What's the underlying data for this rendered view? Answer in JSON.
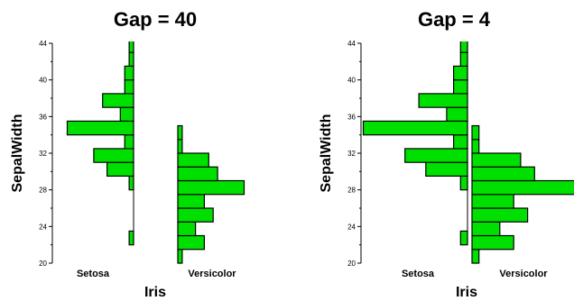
{
  "chart_data": [
    {
      "type": "bar",
      "title": "Gap = 40",
      "xlabel": "Iris",
      "ylabel": "SepalWidth",
      "ylim": [
        20,
        44
      ],
      "yticks": [
        20,
        24,
        28,
        32,
        36,
        40,
        44
      ],
      "categories": [
        "Setosa",
        "Versicolor"
      ],
      "bin_width": 1.5,
      "series": [
        {
          "category": "Setosa",
          "bins": [
            {
              "lo": 22.0,
              "hi": 23.5,
              "count": 1
            },
            {
              "lo": 28.0,
              "hi": 29.5,
              "count": 1
            },
            {
              "lo": 29.5,
              "hi": 31.0,
              "count": 6
            },
            {
              "lo": 31.0,
              "hi": 32.5,
              "count": 9
            },
            {
              "lo": 32.5,
              "hi": 34.0,
              "count": 2
            },
            {
              "lo": 34.0,
              "hi": 35.5,
              "count": 15
            },
            {
              "lo": 35.5,
              "hi": 37.0,
              "count": 3
            },
            {
              "lo": 37.0,
              "hi": 38.5,
              "count": 7
            },
            {
              "lo": 38.5,
              "hi": 40.0,
              "count": 2
            },
            {
              "lo": 40.0,
              "hi": 41.5,
              "count": 2
            },
            {
              "lo": 41.5,
              "hi": 43.0,
              "count": 1
            },
            {
              "lo": 43.0,
              "hi": 44.5,
              "count": 1
            }
          ]
        },
        {
          "category": "Versicolor",
          "bins": [
            {
              "lo": 20.0,
              "hi": 21.5,
              "count": 1
            },
            {
              "lo": 21.5,
              "hi": 23.0,
              "count": 6
            },
            {
              "lo": 23.0,
              "hi": 24.5,
              "count": 4
            },
            {
              "lo": 24.5,
              "hi": 26.0,
              "count": 8
            },
            {
              "lo": 26.0,
              "hi": 27.5,
              "count": 6
            },
            {
              "lo": 27.5,
              "hi": 29.0,
              "count": 15
            },
            {
              "lo": 29.0,
              "hi": 30.5,
              "count": 9
            },
            {
              "lo": 30.5,
              "hi": 32.0,
              "count": 7
            },
            {
              "lo": 32.0,
              "hi": 33.5,
              "count": 1
            },
            {
              "lo": 33.5,
              "hi": 35.0,
              "count": 1
            }
          ]
        }
      ]
    },
    {
      "type": "bar",
      "title": "Gap = 4",
      "xlabel": "Iris",
      "ylabel": "SepalWidth",
      "ylim": [
        20,
        44
      ],
      "yticks": [
        20,
        24,
        28,
        32,
        36,
        40,
        44
      ],
      "categories": [
        "Setosa",
        "Versicolor"
      ],
      "bin_width": 1.5,
      "series": [
        {
          "category": "Setosa",
          "bins": [
            {
              "lo": 22.0,
              "hi": 23.5,
              "count": 1
            },
            {
              "lo": 28.0,
              "hi": 29.5,
              "count": 1
            },
            {
              "lo": 29.5,
              "hi": 31.0,
              "count": 6
            },
            {
              "lo": 31.0,
              "hi": 32.5,
              "count": 9
            },
            {
              "lo": 32.5,
              "hi": 34.0,
              "count": 2
            },
            {
              "lo": 34.0,
              "hi": 35.5,
              "count": 15
            },
            {
              "lo": 35.5,
              "hi": 37.0,
              "count": 3
            },
            {
              "lo": 37.0,
              "hi": 38.5,
              "count": 7
            },
            {
              "lo": 38.5,
              "hi": 40.0,
              "count": 2
            },
            {
              "lo": 40.0,
              "hi": 41.5,
              "count": 2
            },
            {
              "lo": 41.5,
              "hi": 43.0,
              "count": 1
            },
            {
              "lo": 43.0,
              "hi": 44.5,
              "count": 1
            }
          ]
        },
        {
          "category": "Versicolor",
          "bins": [
            {
              "lo": 20.0,
              "hi": 21.5,
              "count": 1
            },
            {
              "lo": 21.5,
              "hi": 23.0,
              "count": 6
            },
            {
              "lo": 23.0,
              "hi": 24.5,
              "count": 4
            },
            {
              "lo": 24.5,
              "hi": 26.0,
              "count": 8
            },
            {
              "lo": 26.0,
              "hi": 27.5,
              "count": 6
            },
            {
              "lo": 27.5,
              "hi": 29.0,
              "count": 15
            },
            {
              "lo": 29.0,
              "hi": 30.5,
              "count": 9
            },
            {
              "lo": 30.5,
              "hi": 32.0,
              "count": 7
            },
            {
              "lo": 32.0,
              "hi": 33.5,
              "count": 1
            },
            {
              "lo": 33.5,
              "hi": 35.0,
              "count": 1
            }
          ]
        }
      ]
    }
  ],
  "colors": {
    "bar_fill": "#00e000",
    "bar_stroke": "#000000",
    "background": "#ffffff"
  }
}
